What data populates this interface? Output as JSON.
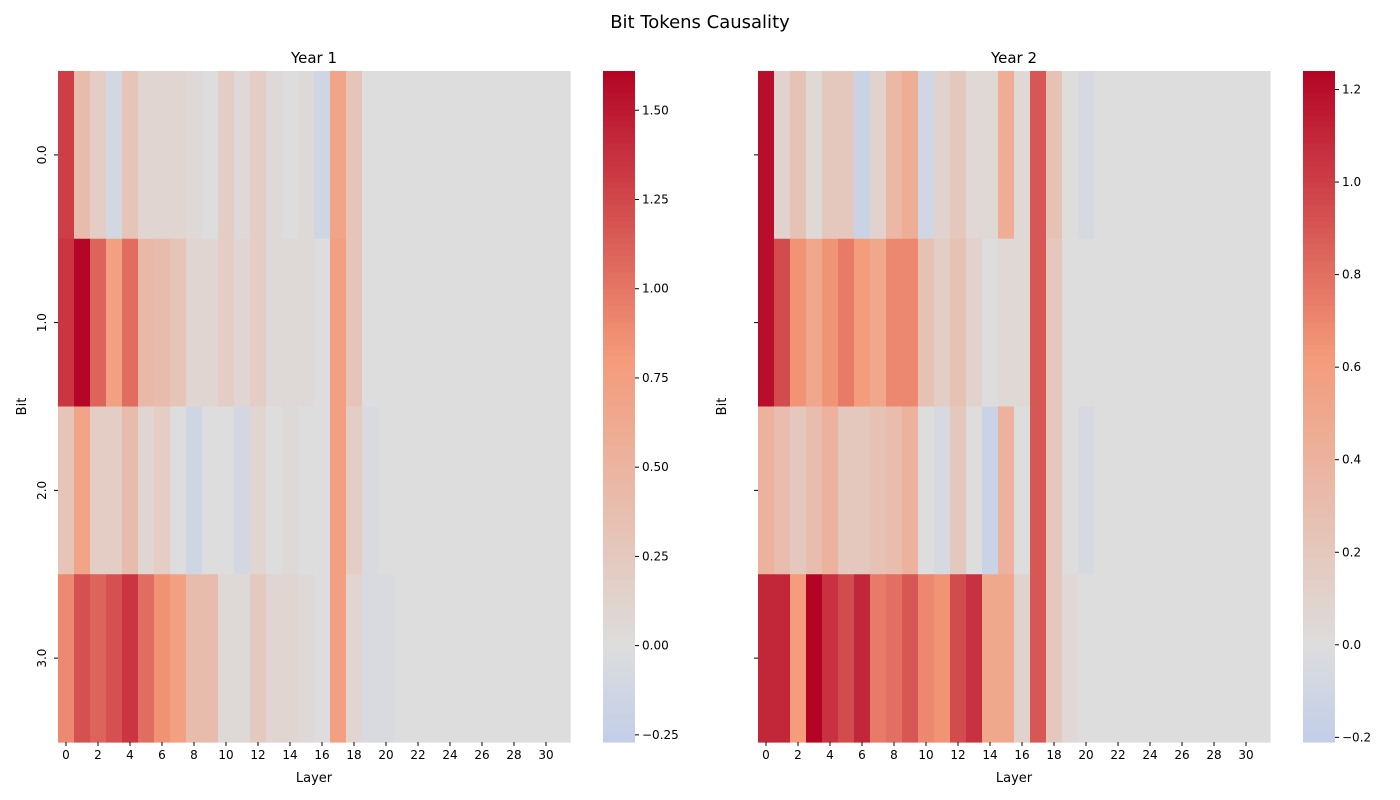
{
  "figure": {
    "suptitle": "Bit Tokens Causality"
  },
  "chart_data": [
    {
      "type": "heatmap",
      "title": "Year 1",
      "xlabel": "Layer",
      "ylabel": "Bit",
      "colormap": "coolwarm",
      "x_tick_labels": [
        "0",
        "2",
        "4",
        "6",
        "8",
        "10",
        "12",
        "14",
        "16",
        "18",
        "20",
        "22",
        "24",
        "26",
        "28",
        "30"
      ],
      "y_tick_labels": [
        "0.0",
        "1.0",
        "2.0",
        "3.0"
      ],
      "rows": [
        0.0,
        1.0,
        2.0,
        3.0
      ],
      "columns": [
        0,
        1,
        2,
        3,
        4,
        5,
        6,
        7,
        8,
        9,
        10,
        11,
        12,
        13,
        14,
        15,
        16,
        17,
        18,
        19,
        20,
        21,
        22,
        23,
        24,
        25,
        26,
        27,
        28,
        29,
        30,
        31
      ],
      "values": [
        [
          1.3,
          0.4,
          0.2,
          -0.1,
          0.3,
          0.1,
          0.1,
          0.1,
          0.05,
          0.0,
          0.2,
          0.05,
          0.2,
          0.05,
          0.0,
          0.05,
          -0.15,
          0.7,
          0.3,
          0.0,
          0.0,
          0.0,
          0.0,
          0.0,
          0.0,
          0.0,
          0.0,
          0.0,
          0.0,
          0.0,
          0.0,
          0.0
        ],
        [
          1.35,
          1.6,
          1.1,
          0.75,
          1.05,
          0.45,
          0.4,
          0.3,
          0.1,
          0.1,
          0.2,
          0.1,
          0.2,
          0.05,
          0.05,
          0.05,
          0.0,
          0.75,
          0.3,
          0.0,
          0.0,
          0.0,
          0.0,
          0.0,
          0.0,
          0.0,
          0.0,
          0.0,
          0.0,
          0.0,
          0.0,
          0.0
        ],
        [
          0.3,
          0.7,
          0.2,
          0.2,
          0.4,
          0.1,
          0.2,
          0.0,
          -0.15,
          0.0,
          0.0,
          -0.1,
          0.1,
          0.0,
          0.05,
          0.0,
          0.0,
          0.75,
          0.2,
          -0.05,
          0.0,
          0.0,
          0.0,
          0.0,
          0.0,
          0.0,
          0.0,
          0.0,
          0.0,
          0.0,
          0.0,
          0.0
        ],
        [
          0.9,
          1.2,
          1.1,
          1.2,
          1.35,
          1.05,
          0.85,
          0.75,
          0.4,
          0.4,
          0.05,
          0.05,
          0.25,
          0.1,
          0.1,
          0.05,
          0.0,
          0.75,
          0.1,
          -0.05,
          -0.05,
          0.0,
          0.0,
          0.0,
          0.0,
          0.0,
          0.0,
          0.0,
          0.0,
          0.0,
          0.0,
          0.0
        ]
      ],
      "vmin": -0.27,
      "vmax": 1.61,
      "colorbar_ticks": [
        -0.25,
        0.0,
        0.25,
        0.5,
        0.75,
        1.0,
        1.25,
        1.5
      ],
      "colorbar_tick_labels": [
        "−0.25",
        "0.00",
        "0.25",
        "0.50",
        "0.75",
        "1.00",
        "1.25",
        "1.50"
      ]
    },
    {
      "type": "heatmap",
      "title": "Year 2",
      "xlabel": "Layer",
      "ylabel": "Bit",
      "colormap": "coolwarm",
      "x_tick_labels": [
        "0",
        "2",
        "4",
        "6",
        "8",
        "10",
        "12",
        "14",
        "16",
        "18",
        "20",
        "22",
        "24",
        "26",
        "28",
        "30"
      ],
      "y_tick_labels": [
        "",
        "",
        "",
        ""
      ],
      "rows": [
        0.0,
        1.0,
        2.0,
        3.0
      ],
      "columns": [
        0,
        1,
        2,
        3,
        4,
        5,
        6,
        7,
        8,
        9,
        10,
        11,
        12,
        13,
        14,
        15,
        16,
        17,
        18,
        19,
        20,
        21,
        22,
        23,
        24,
        25,
        26,
        27,
        28,
        29,
        30,
        31
      ],
      "values": [
        [
          1.2,
          0.1,
          0.25,
          0.05,
          0.2,
          0.2,
          -0.15,
          0.1,
          0.35,
          0.45,
          -0.1,
          0.1,
          0.2,
          0.05,
          0.05,
          0.45,
          0.05,
          0.9,
          0.25,
          0.0,
          -0.05,
          0.0,
          0.0,
          0.0,
          0.0,
          0.0,
          0.0,
          0.0,
          0.0,
          0.0,
          0.0,
          0.0
        ],
        [
          1.2,
          0.95,
          0.65,
          0.5,
          0.65,
          0.75,
          0.6,
          0.5,
          0.7,
          0.7,
          0.25,
          0.15,
          0.25,
          0.1,
          0.0,
          0.05,
          0.05,
          0.9,
          0.2,
          0.0,
          0.0,
          0.0,
          0.0,
          0.0,
          0.0,
          0.0,
          0.0,
          0.0,
          0.0,
          0.0,
          0.0,
          0.0
        ],
        [
          0.4,
          0.3,
          0.2,
          0.3,
          0.4,
          0.2,
          0.2,
          0.25,
          0.3,
          0.4,
          0.0,
          -0.05,
          0.2,
          0.0,
          -0.15,
          0.4,
          0.0,
          0.9,
          0.2,
          0.0,
          -0.05,
          0.0,
          0.0,
          0.0,
          0.0,
          0.0,
          0.0,
          0.0,
          0.0,
          0.0,
          0.0,
          0.0
        ],
        [
          1.1,
          1.1,
          0.6,
          1.25,
          1.05,
          0.95,
          1.1,
          0.75,
          0.8,
          0.9,
          0.7,
          0.65,
          0.95,
          1.05,
          0.5,
          0.5,
          0.1,
          0.9,
          0.2,
          0.05,
          0.0,
          0.0,
          0.0,
          0.0,
          0.0,
          0.0,
          0.0,
          0.0,
          0.0,
          0.0,
          0.0,
          0.0
        ]
      ],
      "vmin": -0.21,
      "vmax": 1.24,
      "colorbar_ticks": [
        -0.2,
        0.0,
        0.2,
        0.4,
        0.6,
        0.8,
        1.0,
        1.2
      ],
      "colorbar_tick_labels": [
        "−0.2",
        "0.0",
        "0.2",
        "0.4",
        "0.6",
        "0.8",
        "1.0",
        "1.2"
      ]
    }
  ]
}
